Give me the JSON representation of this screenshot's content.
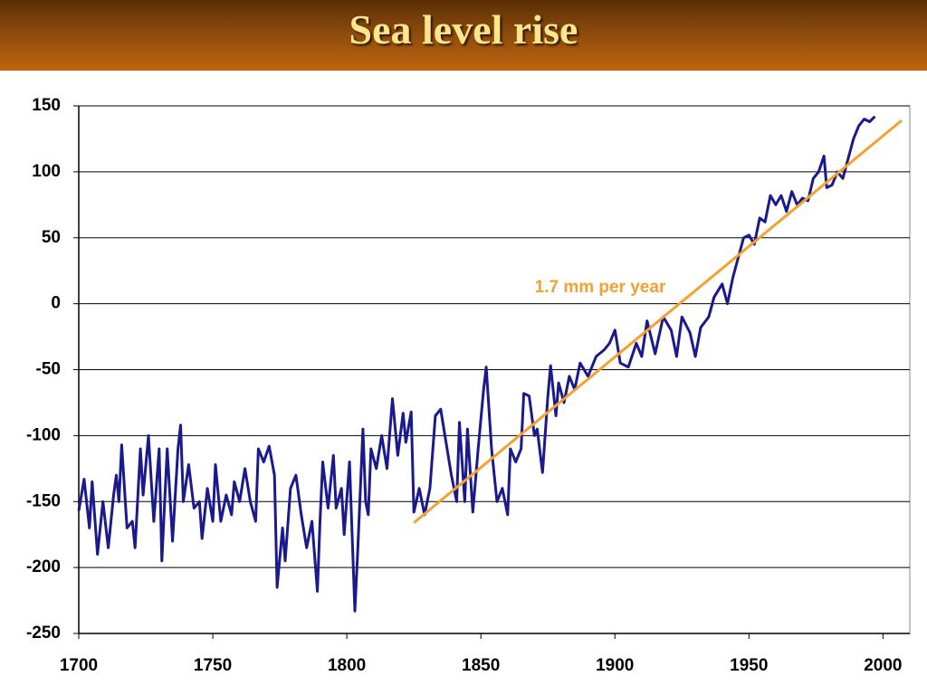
{
  "chart_data": {
    "type": "line",
    "title": "Sea level rise",
    "annotation": "1.7 mm per year",
    "xlim": [
      1700,
      2010
    ],
    "ylim": [
      -250,
      150
    ],
    "xticks": [
      1700,
      1750,
      1800,
      1850,
      1900,
      1950,
      2000
    ],
    "yticks": [
      -250,
      -200,
      -150,
      -100,
      -50,
      0,
      50,
      100,
      150
    ],
    "grid": true,
    "series": [
      {
        "color": "#1a1a8c",
        "x": [
          1700,
          1702,
          1704,
          1705,
          1707,
          1709,
          1711,
          1713,
          1714,
          1715,
          1716,
          1718,
          1720,
          1721,
          1723,
          1724,
          1726,
          1728,
          1730,
          1731,
          1733,
          1735,
          1737,
          1738,
          1739,
          1741,
          1743,
          1745,
          1746,
          1748,
          1750,
          1751,
          1753,
          1755,
          1757,
          1758,
          1760,
          1762,
          1764,
          1766,
          1767,
          1769,
          1771,
          1773,
          1774,
          1776,
          1777,
          1779,
          1781,
          1783,
          1785,
          1787,
          1789,
          1790,
          1791,
          1793,
          1795,
          1796,
          1798,
          1799,
          1801,
          1803,
          1804,
          1806,
          1807,
          1808,
          1809,
          1811,
          1813,
          1815,
          1817,
          1819,
          1821,
          1822,
          1824,
          1825,
          1827,
          1829,
          1831,
          1833,
          1835,
          1837,
          1839,
          1841,
          1842,
          1844,
          1845,
          1847,
          1849,
          1851,
          1852,
          1854,
          1856,
          1858,
          1860,
          1861,
          1863,
          1865,
          1866,
          1868,
          1870,
          1871,
          1873,
          1875,
          1876,
          1878,
          1879,
          1881,
          1883,
          1885,
          1887,
          1890,
          1893,
          1896,
          1898,
          1900,
          1902,
          1905,
          1908,
          1910,
          1912,
          1915,
          1918,
          1921,
          1923,
          1925,
          1928,
          1930,
          1932,
          1935,
          1937,
          1940,
          1942,
          1944,
          1946,
          1948,
          1950,
          1952,
          1954,
          1956,
          1958,
          1960,
          1962,
          1964,
          1966,
          1968,
          1970,
          1972,
          1974,
          1976,
          1978,
          1979,
          1981,
          1983,
          1985,
          1987,
          1989,
          1991,
          1993,
          1995,
          1997
        ],
        "values": [
          -157,
          -133,
          -170,
          -135,
          -190,
          -150,
          -185,
          -145,
          -130,
          -150,
          -107,
          -170,
          -165,
          -185,
          -110,
          -145,
          -100,
          -165,
          -110,
          -195,
          -110,
          -180,
          -110,
          -92,
          -150,
          -122,
          -155,
          -150,
          -178,
          -140,
          -165,
          -122,
          -165,
          -145,
          -160,
          -135,
          -150,
          -125,
          -150,
          -165,
          -110,
          -120,
          -108,
          -130,
          -215,
          -170,
          -195,
          -140,
          -130,
          -160,
          -185,
          -165,
          -218,
          -165,
          -120,
          -155,
          -115,
          -155,
          -140,
          -175,
          -120,
          -233,
          -190,
          -95,
          -150,
          -160,
          -110,
          -125,
          -100,
          -125,
          -72,
          -115,
          -83,
          -105,
          -82,
          -158,
          -140,
          -160,
          -140,
          -85,
          -80,
          -105,
          -130,
          -150,
          -90,
          -150,
          -95,
          -158,
          -110,
          -65,
          -48,
          -110,
          -150,
          -140,
          -160,
          -110,
          -120,
          -110,
          -68,
          -70,
          -100,
          -95,
          -128,
          -70,
          -47,
          -85,
          -60,
          -75,
          -55,
          -65,
          -45,
          -55,
          -40,
          -35,
          -30,
          -20,
          -45,
          -48,
          -30,
          -40,
          -13,
          -38,
          -10,
          -20,
          -40,
          -10,
          -22,
          -40,
          -18,
          -10,
          5,
          15,
          0,
          20,
          35,
          50,
          52,
          45,
          65,
          62,
          82,
          75,
          82,
          70,
          85,
          75,
          80,
          78,
          95,
          100,
          112,
          88,
          90,
          100,
          95,
          110,
          125,
          135,
          140,
          138,
          142
        ]
      },
      {
        "color": "#f5a030",
        "x": [
          1825,
          2007
        ],
        "values": [
          -166,
          139
        ]
      }
    ]
  }
}
